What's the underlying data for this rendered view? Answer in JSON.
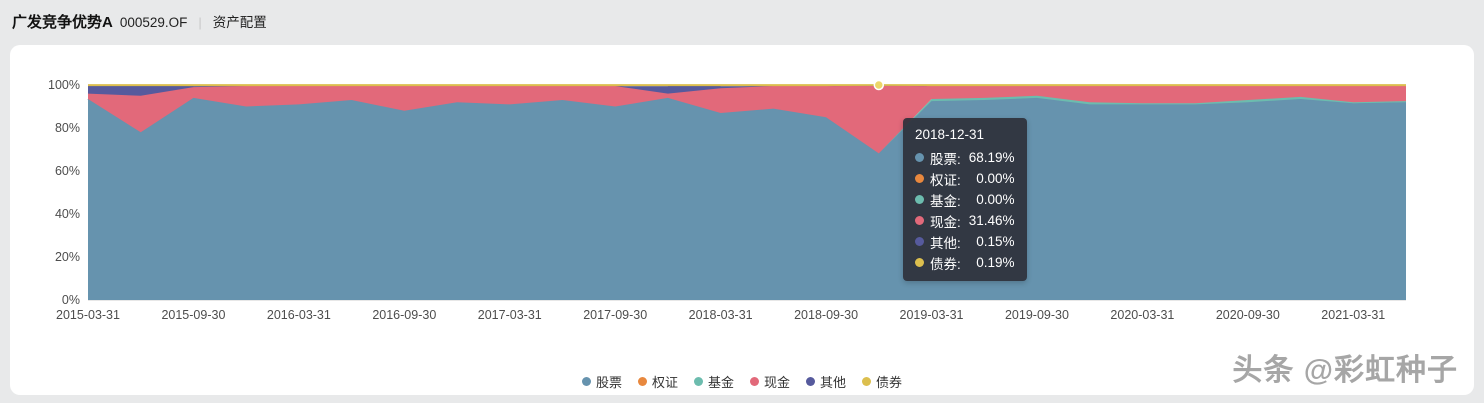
{
  "header": {
    "fund_name": "广发竞争优势A",
    "fund_code": "000529.OF",
    "separator": "|",
    "section": "资产配置"
  },
  "chart_data": {
    "type": "area",
    "stacked": true,
    "unit": "%",
    "ylim": [
      0,
      100
    ],
    "yticks": [
      "0%",
      "20%",
      "40%",
      "60%",
      "80%",
      "100%"
    ],
    "x_axis_labels_shown": [
      "2015-03-31",
      "2015-09-30",
      "2016-03-31",
      "2016-09-30",
      "2017-03-31",
      "2017-09-30",
      "2018-03-31",
      "2018-09-30",
      "2019-03-31",
      "2019-09-30",
      "2020-03-31",
      "2020-09-30",
      "2021-03-31"
    ],
    "categories": [
      "2015-03-31",
      "2015-06-30",
      "2015-09-30",
      "2015-12-31",
      "2016-03-31",
      "2016-06-30",
      "2016-09-30",
      "2016-12-31",
      "2017-03-31",
      "2017-06-30",
      "2017-09-30",
      "2017-12-31",
      "2018-03-31",
      "2018-06-30",
      "2018-09-30",
      "2018-12-31",
      "2019-03-31",
      "2019-06-30",
      "2019-09-30",
      "2019-12-31",
      "2020-03-31",
      "2020-06-30",
      "2020-09-30",
      "2020-12-31",
      "2021-03-31",
      "2021-06-30"
    ],
    "series": [
      {
        "name": "股票",
        "color": "#6693ae",
        "values": [
          93.5,
          78,
          94,
          90,
          91,
          93,
          88,
          92,
          91,
          93,
          90,
          94,
          87,
          89,
          85,
          68.19,
          92.5,
          93,
          94,
          91,
          91,
          91,
          92,
          93.5,
          91.5,
          92
        ]
      },
      {
        "name": "权证",
        "color": "#e8883e",
        "values": [
          0,
          0,
          0,
          0,
          0,
          0,
          0,
          0,
          0,
          0,
          0,
          0,
          0,
          0,
          0,
          0,
          0,
          0,
          0,
          0,
          0,
          0,
          0,
          0,
          0,
          0
        ]
      },
      {
        "name": "基金",
        "color": "#6cbcae",
        "values": [
          0,
          0,
          0,
          0,
          0,
          0,
          0,
          0,
          0,
          0,
          0,
          0,
          0,
          0,
          0,
          0,
          1,
          1,
          1,
          1,
          0.5,
          0.5,
          1,
          1,
          0.5,
          0.5
        ]
      },
      {
        "name": "现金",
        "color": "#e2697a",
        "values": [
          2.5,
          17,
          5,
          9.5,
          8.5,
          6.5,
          11.5,
          7.5,
          8.5,
          6.5,
          9.5,
          2,
          11.5,
          10.5,
          14.5,
          31.46,
          6,
          5.5,
          4.5,
          7.5,
          8,
          8,
          6.5,
          5,
          7.5,
          7
        ]
      },
      {
        "name": "其他",
        "color": "#565a9d",
        "values": [
          3.5,
          4.5,
          0.5,
          0,
          0,
          0,
          0,
          0,
          0,
          0,
          0,
          3.5,
          1,
          0,
          0,
          0.15,
          0,
          0,
          0,
          0,
          0,
          0,
          0,
          0,
          0,
          0
        ]
      },
      {
        "name": "债券",
        "color": "#dcbf4e",
        "values": [
          0.5,
          0.5,
          0.5,
          0.5,
          0.5,
          0.5,
          0.5,
          0.5,
          0.5,
          0.5,
          0.5,
          0.5,
          0.5,
          0.5,
          0.5,
          0.19,
          0.5,
          0.5,
          0.5,
          0.5,
          0.5,
          0.5,
          0.5,
          0.5,
          0.5,
          0.5
        ]
      }
    ],
    "highlight_index": 15,
    "grid": true,
    "legend_position": "bottom"
  },
  "tooltip": {
    "title": "2018-12-31",
    "rows": [
      {
        "label": "股票:",
        "value": "68.19%"
      },
      {
        "label": "权证:",
        "value": "0.00%"
      },
      {
        "label": "基金:",
        "value": "0.00%"
      },
      {
        "label": "现金:",
        "value": "31.46%"
      },
      {
        "label": "其他:",
        "value": "0.15%"
      },
      {
        "label": "债券:",
        "value": "0.19%"
      }
    ]
  },
  "legend": {
    "items": [
      "股票",
      "权证",
      "基金",
      "现金",
      "其他",
      "债券"
    ]
  },
  "watermark": "头条 @彩虹种子"
}
